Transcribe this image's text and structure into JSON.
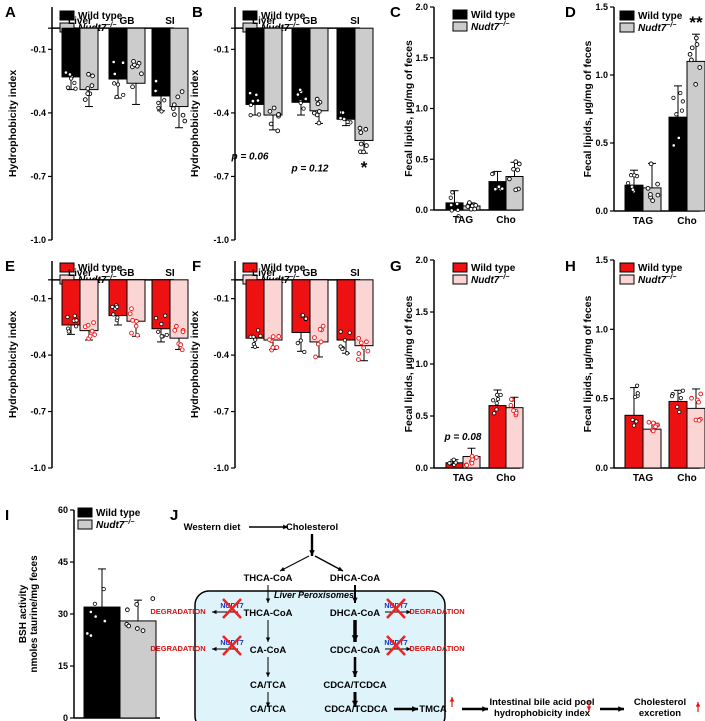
{
  "colors": {
    "black": "#000000",
    "grey": "#cccccc",
    "red": "#ee1111",
    "pink": "#fbd4d4",
    "redText": "#dd1111",
    "blueText": "#1133cc",
    "cross": "#ee2222",
    "box": "#dff3fa"
  },
  "chart_data": [
    {
      "panel": "A",
      "type": "bar",
      "ylabel": "Hydrophobicity index",
      "ylim": [
        -1.0,
        0.1
      ],
      "yticks": [
        "-0.1",
        "-0.4",
        "-0.7",
        "-1.0"
      ],
      "categories": [
        "Liver",
        "GB",
        "SI"
      ],
      "series": [
        {
          "name": "Wild type",
          "values": [
            -0.23,
            -0.24,
            -0.32
          ]
        },
        {
          "name": "Nudt7−/−",
          "values": [
            -0.29,
            -0.26,
            -0.37
          ]
        }
      ],
      "errors": [
        [
          0.06,
          0.09,
          0.07
        ],
        [
          0.08,
          0.1,
          0.1
        ]
      ],
      "legend": [
        "Wild type",
        "Nudt7"
      ],
      "annotations": []
    },
    {
      "panel": "B",
      "type": "bar",
      "ylabel": "Hydrophobicity index",
      "ylim": [
        -1.0,
        0.1
      ],
      "yticks": [
        "-0.1",
        "-0.4",
        "-0.7",
        "-1.0"
      ],
      "categories": [
        "Liver",
        "GB",
        "SI"
      ],
      "series": [
        {
          "name": "Wild type",
          "values": [
            -0.36,
            -0.35,
            -0.43
          ]
        },
        {
          "name": "Nudt7−/−",
          "values": [
            -0.41,
            -0.39,
            -0.53
          ]
        }
      ],
      "errors": [
        [
          0.05,
          0.06,
          0.03
        ],
        [
          0.07,
          0.06,
          0.06
        ]
      ],
      "legend": [
        "Wild type",
        "Nudt7"
      ],
      "annotations": [
        {
          "text": "p = 0.06",
          "group": 0
        },
        {
          "text": "p = 0.12",
          "group": 1
        },
        {
          "text": "*",
          "group": 2
        }
      ]
    },
    {
      "panel": "C",
      "type": "bar",
      "ylabel": "Fecal lipids, µg/mg of feces",
      "ylim": [
        0,
        2.0
      ],
      "yticks": [
        "0.0",
        "0.5",
        "1.0",
        "1.5",
        "2.0"
      ],
      "categories": [
        "TAG",
        "Cho"
      ],
      "series": [
        {
          "name": "Wild type",
          "values": [
            0.07,
            0.28
          ]
        },
        {
          "name": "Nudt7−/−",
          "values": [
            0.04,
            0.33
          ]
        }
      ],
      "errors": [
        [
          0.12,
          0.1
        ],
        [
          0.03,
          0.14
        ]
      ],
      "legend": [
        "Wild type",
        "Nudt7"
      ],
      "annotations": []
    },
    {
      "panel": "D",
      "type": "bar",
      "ylabel": "Fecal lipids, µg/mg of feces",
      "ylim": [
        0,
        1.5
      ],
      "yticks": [
        "0.0",
        "0.5",
        "1.0",
        "1.5"
      ],
      "categories": [
        "TAG",
        "Cho"
      ],
      "series": [
        {
          "name": "Wild type",
          "values": [
            0.19,
            0.69
          ]
        },
        {
          "name": "Nudt7−/−",
          "values": [
            0.17,
            1.1
          ]
        }
      ],
      "errors": [
        [
          0.11,
          0.23
        ],
        [
          0.18,
          0.2
        ]
      ],
      "legend": [
        "Wild type",
        "Nudt7"
      ],
      "annotations": [
        {
          "text": "**",
          "group": 1
        }
      ]
    },
    {
      "panel": "E",
      "type": "bar",
      "ylabel": "Hydrophobicity index",
      "ylim": [
        -1.0,
        0.1
      ],
      "yticks": [
        "-0.1",
        "-0.4",
        "-0.7",
        "-1.0"
      ],
      "categories": [
        "Liver",
        "GB",
        "SI"
      ],
      "series": [
        {
          "name": "Wild type",
          "values": [
            -0.24,
            -0.19,
            -0.26
          ]
        },
        {
          "name": "Nudt7−/−",
          "values": [
            -0.27,
            -0.22,
            -0.31
          ]
        }
      ],
      "errors": [
        [
          0.05,
          0.05,
          0.07
        ],
        [
          0.05,
          0.08,
          0.06
        ]
      ],
      "legend": [
        "Wild type",
        "Nudt7"
      ],
      "annotations": []
    },
    {
      "panel": "F",
      "type": "bar",
      "ylabel": "Hydrophobicity index",
      "ylim": [
        -1.0,
        0.1
      ],
      "yticks": [
        "-0.1",
        "-0.4",
        "-0.7",
        "-1.0"
      ],
      "categories": [
        "Liver",
        "GB",
        "SI"
      ],
      "series": [
        {
          "name": "Wild type",
          "values": [
            -0.31,
            -0.28,
            -0.32
          ]
        },
        {
          "name": "Nudt7−/−",
          "values": [
            -0.32,
            -0.33,
            -0.35
          ]
        }
      ],
      "errors": [
        [
          0.05,
          0.1,
          0.07
        ],
        [
          0.05,
          0.08,
          0.08
        ]
      ],
      "legend": [
        "Wild type",
        "Nudt7"
      ],
      "annotations": []
    },
    {
      "panel": "G",
      "type": "bar",
      "ylabel": "Fecal lipids, µg/mg of feces",
      "ylim": [
        0,
        2.0
      ],
      "yticks": [
        "0.0",
        "0.5",
        "1.0",
        "1.5",
        "2.0"
      ],
      "categories": [
        "TAG",
        "Cho"
      ],
      "series": [
        {
          "name": "Wild type",
          "values": [
            0.05,
            0.6
          ]
        },
        {
          "name": "Nudt7−/−",
          "values": [
            0.11,
            0.58
          ]
        }
      ],
      "errors": [
        [
          0.03,
          0.15
        ],
        [
          0.08,
          0.1
        ]
      ],
      "legend": [
        "Wild type",
        "Nudt7"
      ],
      "annotations": [
        {
          "text": "p = 0.08",
          "group": 0
        }
      ]
    },
    {
      "panel": "H",
      "type": "bar",
      "ylabel": "Fecal lipids, µg/mg of feces",
      "ylim": [
        0,
        1.5
      ],
      "yticks": [
        "0.0",
        "0.5",
        "1.0",
        "1.5"
      ],
      "categories": [
        "TAG",
        "Cho"
      ],
      "series": [
        {
          "name": "Wild type",
          "values": [
            0.38,
            0.48
          ]
        },
        {
          "name": "Nudt7−/−",
          "values": [
            0.28,
            0.43
          ]
        }
      ],
      "errors": [
        [
          0.2,
          0.08
        ],
        [
          0.05,
          0.14
        ]
      ],
      "legend": [
        "Wild type",
        "Nudt7"
      ],
      "annotations": []
    },
    {
      "panel": "I",
      "type": "bar",
      "ylabel": "BSH activity",
      "ylabel2": "nmoles taurine/mg feces",
      "ylim": [
        0,
        60
      ],
      "yticks": [
        "0",
        "15",
        "30",
        "45",
        "60"
      ],
      "categories": [
        ""
      ],
      "series": [
        {
          "name": "Wild type",
          "values": [
            32
          ]
        },
        {
          "name": "Nudt7−/−",
          "values": [
            28
          ]
        }
      ],
      "errors": [
        [
          11
        ],
        [
          6
        ]
      ],
      "legend": [
        "Wild type",
        "Nudt7"
      ],
      "annotations": []
    }
  ],
  "diagram": {
    "label": "J",
    "western_diet": "Western diet",
    "cholesterol": "Cholesterol",
    "thca_coa_top": "THCA-CoA",
    "dhca_coa_top": "DHCA-CoA",
    "liver_peroxisomes": "Liver Peroxisomes",
    "thca_coa": "THCA-CoA",
    "dhca_coa": "DHCA-CoA",
    "ca_coa": "CA-CoA",
    "cdca_coa": "CDCA-CoA",
    "ca_tca_in": "CA/TCA",
    "cdca_tcdca_in": "CDCA/TCDCA",
    "ca_tca_out": "CA/TCA",
    "cdca_tcdca_out": "CDCA/TCDCA",
    "tmca": "TMCA",
    "pool1": "Intestinal bile acid pool",
    "pool2": "hydrophobicity index",
    "chol_out1": "Cholesterol",
    "chol_out2": "excretion",
    "degradation": "DEGRADATION",
    "nudt7": "NUDT7"
  }
}
